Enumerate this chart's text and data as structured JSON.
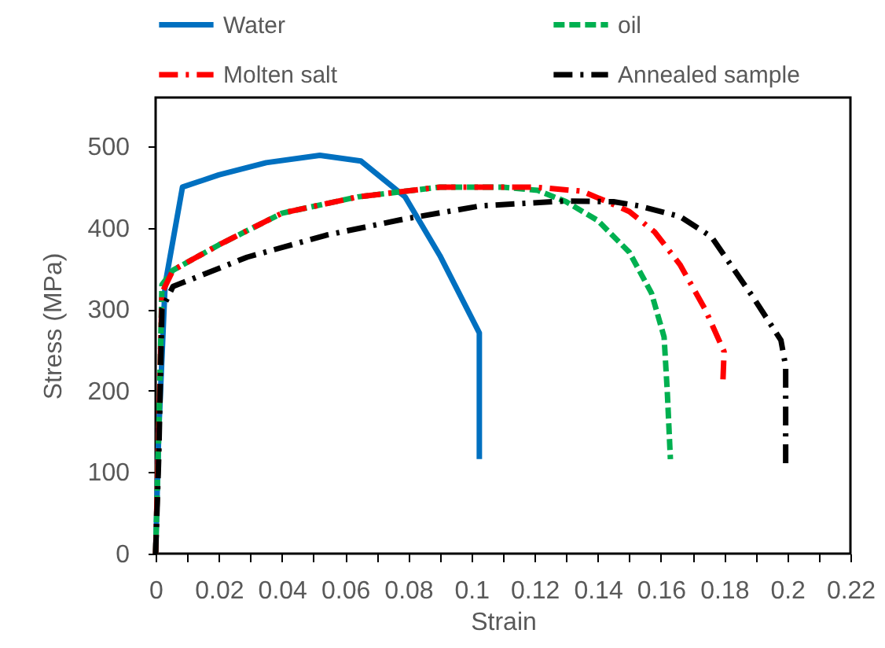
{
  "chart_data": {
    "type": "line",
    "xlabel": "Strain",
    "ylabel": "Stress (MPa)",
    "xlim": [
      0,
      0.22
    ],
    "ylim": [
      0,
      560
    ],
    "xticks": [
      0,
      {
        "value": 0.01,
        "label": null
      },
      0.02,
      {
        "value": 0.03,
        "label": null
      },
      0.04,
      {
        "value": 0.05,
        "label": null
      },
      0.06,
      {
        "value": 0.07,
        "label": null
      },
      0.08,
      {
        "value": 0.09,
        "label": null
      },
      0.1,
      {
        "value": 0.11,
        "label": null
      },
      0.12,
      {
        "value": 0.13,
        "label": null
      },
      0.14,
      {
        "value": 0.15,
        "label": null
      },
      0.16,
      {
        "value": 0.17,
        "label": null
      },
      0.18,
      {
        "value": 0.19,
        "label": null
      },
      0.2,
      {
        "value": 0.21,
        "label": null
      },
      0.22
    ],
    "yticks": [
      0,
      100,
      200,
      300,
      400,
      500
    ],
    "grid": false,
    "legend": "top",
    "marker": "none",
    "series": [
      {
        "name": "Water",
        "color": "#0070c0",
        "line_style": "solid",
        "x": [
          0,
          0.001,
          0.003,
          0.0085,
          0.02,
          0.035,
          0.052,
          0.065,
          0.079,
          0.09,
          0.1025,
          0.1025
        ],
        "values": [
          0,
          150,
          330,
          450,
          465,
          480,
          489,
          482,
          438,
          366,
          271,
          116
        ]
      },
      {
        "name": "oil",
        "color": "#00b050",
        "line_style": "dashed",
        "x": [
          0,
          0.001,
          0.002,
          0.0055,
          0.02,
          0.04,
          0.064,
          0.09,
          0.11,
          0.121,
          0.13,
          0.14,
          0.15,
          0.157,
          0.161,
          0.162,
          0.163
        ],
        "values": [
          0,
          150,
          330,
          348,
          379,
          418,
          438,
          450,
          450,
          446,
          432,
          409,
          370,
          320,
          266,
          200,
          116
        ]
      },
      {
        "name": "Molten salt",
        "color": "#ff0000",
        "line_style": "dashdot",
        "x": [
          0,
          0.001,
          0.002,
          0.0055,
          0.02,
          0.04,
          0.064,
          0.09,
          0.12,
          0.135,
          0.143,
          0.15,
          0.158,
          0.166,
          0.174,
          0.18,
          0.1796
        ],
        "values": [
          0,
          150,
          320,
          348,
          379,
          418,
          438,
          450,
          450,
          445,
          432,
          420,
          395,
          355,
          300,
          248,
          209
        ]
      },
      {
        "name": "Annealed sample",
        "color": "#000000",
        "line_style": "dashdot",
        "x": [
          0,
          0.001,
          0.002,
          0.0055,
          0.029,
          0.054,
          0.079,
          0.103,
          0.13,
          0.145,
          0.153,
          0.166,
          0.176,
          0.1895,
          0.198,
          0.1995,
          0.1995
        ],
        "values": [
          0,
          120,
          300,
          328,
          364,
          391,
          411,
          427,
          433,
          432,
          427,
          414,
          389,
          313,
          262,
          230,
          105
        ]
      }
    ]
  }
}
